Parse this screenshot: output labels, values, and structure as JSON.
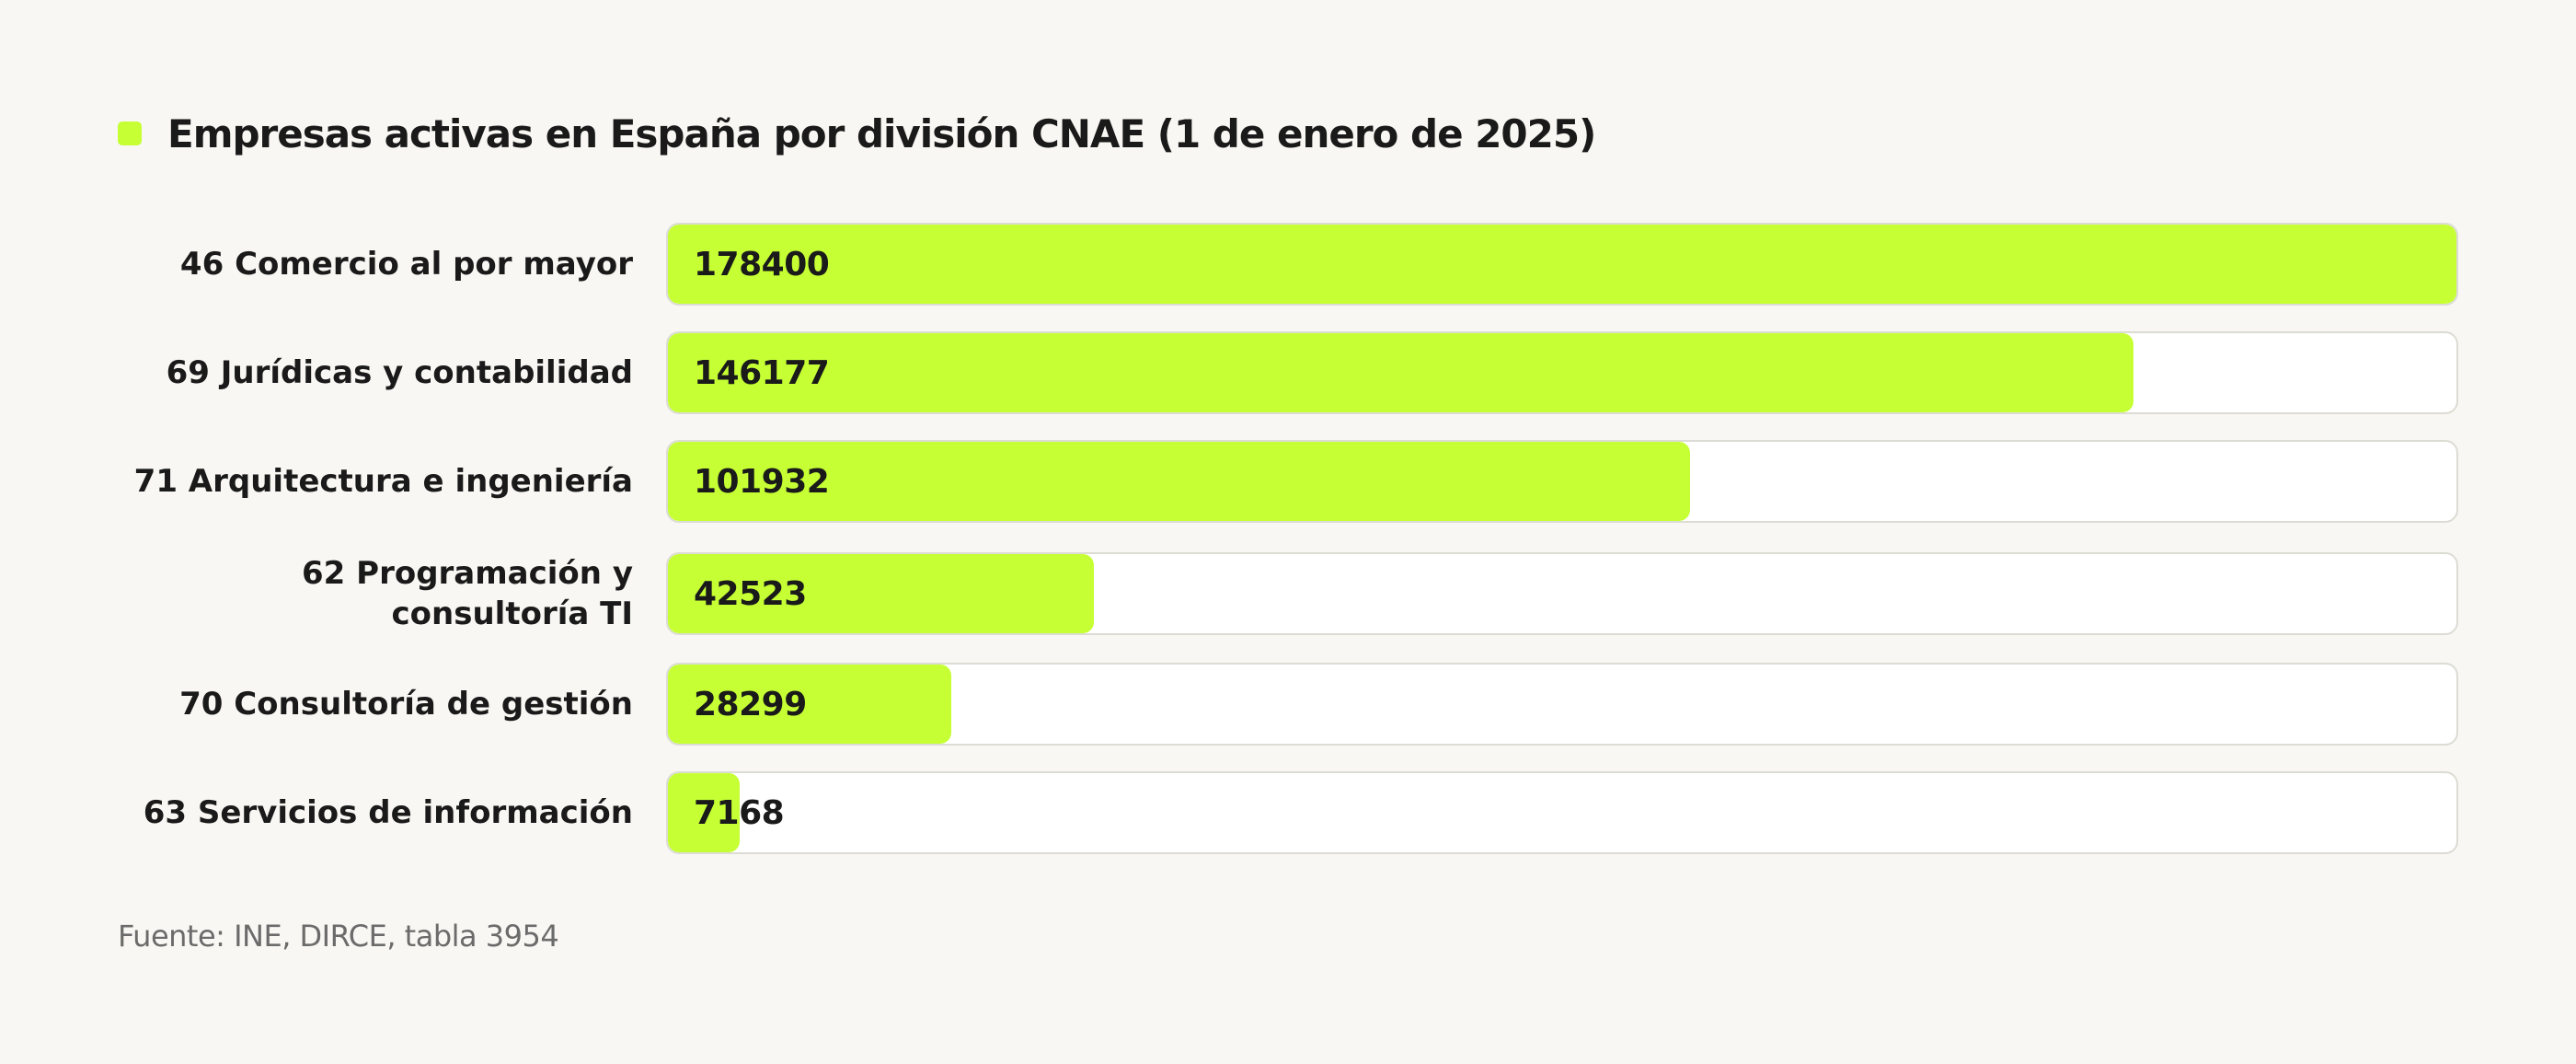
{
  "colors": {
    "accent": "#c5ff34",
    "background": "#f8f7f3",
    "track": "#ffffff",
    "track_border": "#dcdcd4"
  },
  "chart_data": {
    "type": "bar",
    "orientation": "horizontal",
    "title": "Empresas activas en España por división CNAE (1 de enero de 2025)",
    "legend": "top-left",
    "categories": [
      "46 Comercio al por mayor",
      "69 Jurídicas y contabilidad",
      "71 Arquitectura e ingeniería",
      "62 Programación y consultoría TI",
      "70 Consultoría de gestión",
      "63 Servicios de información"
    ],
    "values": [
      178400,
      146177,
      101932,
      42523,
      28299,
      7168
    ],
    "xlim": [
      0,
      178400
    ],
    "grid": false
  },
  "source": "Fuente: INE, DIRCE, tabla 3954"
}
